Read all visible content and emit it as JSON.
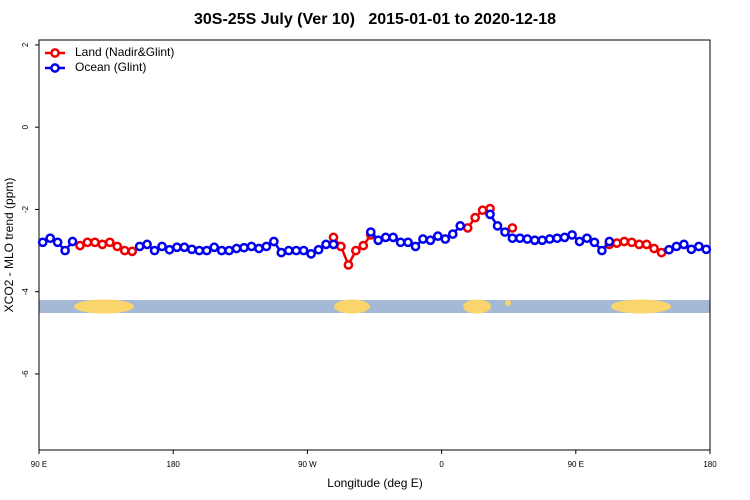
{
  "chart_data": {
    "type": "line",
    "title": "30S-25S July (Ver 10)   2015-01-01 to 2020-12-18",
    "xlabel": "Longitude (deg E)",
    "ylabel": "XCO2 - MLO trend (ppm)",
    "xlim": [
      90,
      540
    ],
    "ylim": [
      -7.85,
      2.12
    ],
    "xticks": [
      {
        "value": 90,
        "label": "90 E"
      },
      180,
      {
        "value": 270,
        "label": "90 W"
      },
      {
        "value": 360,
        "label": "0"
      },
      {
        "value": 450,
        "label": "90 E"
      },
      {
        "value": 540,
        "label": "180"
      }
    ],
    "yticks": [
      2,
      0,
      -2,
      -4,
      -6
    ],
    "legend": "top-left",
    "x": [
      92.5,
      97.5,
      102.5,
      107.5,
      112.5,
      117.5,
      122.5,
      127.5,
      132.5,
      137.5,
      142.5,
      147.5,
      152.5,
      157.5,
      162.5,
      167.5,
      172.5,
      177.5,
      182.5,
      187.5,
      192.5,
      197.5,
      202.5,
      207.5,
      212.5,
      217.5,
      222.5,
      227.5,
      232.5,
      237.5,
      242.5,
      247.5,
      252.5,
      257.5,
      262.5,
      267.5,
      272.5,
      277.5,
      282.5,
      287.5,
      292.5,
      297.5,
      302.5,
      307.5,
      312.5,
      317.5,
      322.5,
      327.5,
      332.5,
      337.5,
      342.5,
      347.5,
      352.5,
      357.5,
      362.5,
      367.5,
      372.5,
      377.5,
      382.5,
      387.5,
      392.5,
      397.5,
      402.5,
      407.5,
      412.5,
      417.5,
      422.5,
      427.5,
      432.5,
      437.5,
      442.5,
      447.5,
      452.5,
      457.5,
      462.5,
      467.5,
      472.5,
      477.5,
      482.5,
      487.5,
      492.5,
      497.5,
      502.5,
      507.5,
      512.5,
      517.5,
      522.5,
      527.5,
      532.5,
      537.5
    ],
    "series": [
      {
        "name": "Land (Nadir&Glint)",
        "color": "#ee0000",
        "values": [
          null,
          null,
          null,
          null,
          null,
          -2.88,
          -2.8,
          -2.8,
          -2.85,
          -2.8,
          -2.9,
          -3.0,
          -3.02,
          null,
          null,
          null,
          null,
          null,
          null,
          null,
          null,
          null,
          null,
          null,
          null,
          null,
          null,
          null,
          null,
          null,
          null,
          null,
          null,
          null,
          null,
          null,
          null,
          null,
          null,
          -2.68,
          -2.9,
          -3.35,
          -3.0,
          -2.88,
          -2.62,
          null,
          null,
          null,
          null,
          null,
          null,
          null,
          null,
          null,
          null,
          null,
          null,
          -2.45,
          -2.2,
          -2.02,
          -1.98,
          null,
          null,
          -2.45,
          null,
          null,
          null,
          null,
          null,
          null,
          null,
          null,
          null,
          null,
          null,
          null,
          -2.85,
          -2.82,
          -2.78,
          -2.8,
          -2.85,
          -2.85,
          -2.95,
          -3.05,
          null,
          null,
          null,
          null,
          null,
          null
        ]
      },
      {
        "name": "Ocean (Glint)",
        "color": "#0000ee",
        "values": [
          -2.8,
          -2.7,
          -2.8,
          -3.0,
          -2.78,
          null,
          null,
          null,
          null,
          null,
          null,
          null,
          null,
          -2.9,
          -2.85,
          -3.0,
          -2.9,
          -2.98,
          -2.92,
          -2.92,
          -2.97,
          -3.0,
          -3.0,
          -2.92,
          -3.0,
          -3.0,
          -2.95,
          -2.93,
          -2.9,
          -2.95,
          -2.9,
          -2.78,
          -3.05,
          -3.0,
          -3.0,
          -3.0,
          -3.08,
          -2.98,
          -2.85,
          -2.85,
          null,
          null,
          null,
          null,
          -2.55,
          -2.75,
          -2.68,
          -2.68,
          -2.8,
          -2.8,
          -2.9,
          -2.72,
          -2.75,
          -2.65,
          -2.72,
          -2.6,
          -2.4,
          null,
          null,
          null,
          -2.12,
          -2.4,
          -2.55,
          -2.7,
          -2.7,
          -2.72,
          -2.75,
          -2.75,
          -2.72,
          -2.7,
          -2.68,
          -2.62,
          -2.78,
          -2.7,
          -2.8,
          -3.0,
          -2.78,
          null,
          null,
          null,
          null,
          null,
          null,
          null,
          -2.98,
          -2.9,
          -2.85,
          -2.97,
          -2.9,
          -2.97
        ]
      }
    ]
  }
}
